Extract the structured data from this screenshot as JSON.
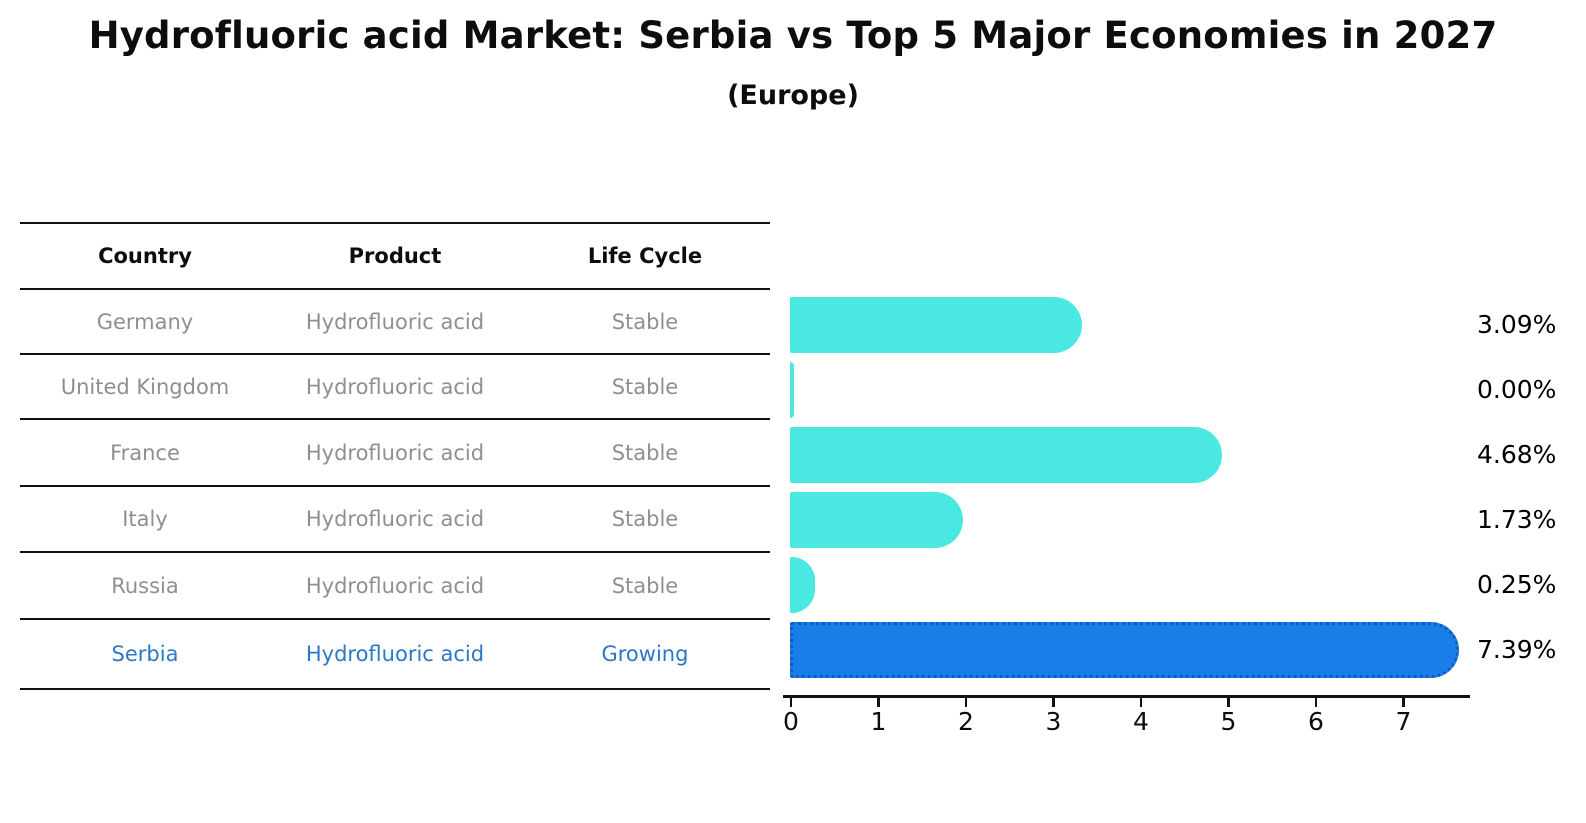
{
  "title": "Hydrofluoric acid Market: Serbia vs Top 5 Major Economies in 2027",
  "subtitle": "(Europe)",
  "table": {
    "headers": [
      "Country",
      "Product",
      "Life Cycle"
    ],
    "rows": [
      {
        "country": "Germany",
        "product": "Hydrofluoric acid",
        "life_cycle": "Stable",
        "highlight": false
      },
      {
        "country": "United Kingdom",
        "product": "Hydrofluoric acid",
        "life_cycle": "Stable",
        "highlight": false
      },
      {
        "country": "France",
        "product": "Hydrofluoric acid",
        "life_cycle": "Stable",
        "highlight": false
      },
      {
        "country": "Italy",
        "product": "Hydrofluoric acid",
        "life_cycle": "Stable",
        "highlight": false
      },
      {
        "country": "Russia",
        "product": "Hydrofluoric acid",
        "life_cycle": "Stable",
        "highlight": false
      },
      {
        "country": "Serbia",
        "product": "Hydrofluoric acid",
        "life_cycle": "Growing",
        "highlight": true
      }
    ]
  },
  "chart_data": {
    "type": "bar",
    "orientation": "horizontal",
    "categories": [
      "Germany",
      "United Kingdom",
      "France",
      "Italy",
      "Russia",
      "Serbia"
    ],
    "values": [
      3.09,
      0.0,
      4.68,
      1.73,
      0.25,
      7.39
    ],
    "value_labels": [
      "3.09%",
      "0.00%",
      "4.68%",
      "1.73%",
      "0.25%",
      "7.39%"
    ],
    "highlight_index": 5,
    "x_ticks": [
      0,
      1,
      2,
      3,
      4,
      5,
      6,
      7
    ],
    "xlim": [
      0,
      7.85
    ],
    "grid": false,
    "legend": "none",
    "bar_color": "#4be8e2",
    "highlight_bar_color": "#1a7ee8",
    "highlight_border_color": "#0f5fc2",
    "highlight_text_color": "#2b78c8",
    "row_text_color": "#8f8f8f",
    "title": "Hydrofluoric acid Market: Serbia vs Top 5 Major Economies in 2027",
    "subtitle": "(Europe)"
  }
}
